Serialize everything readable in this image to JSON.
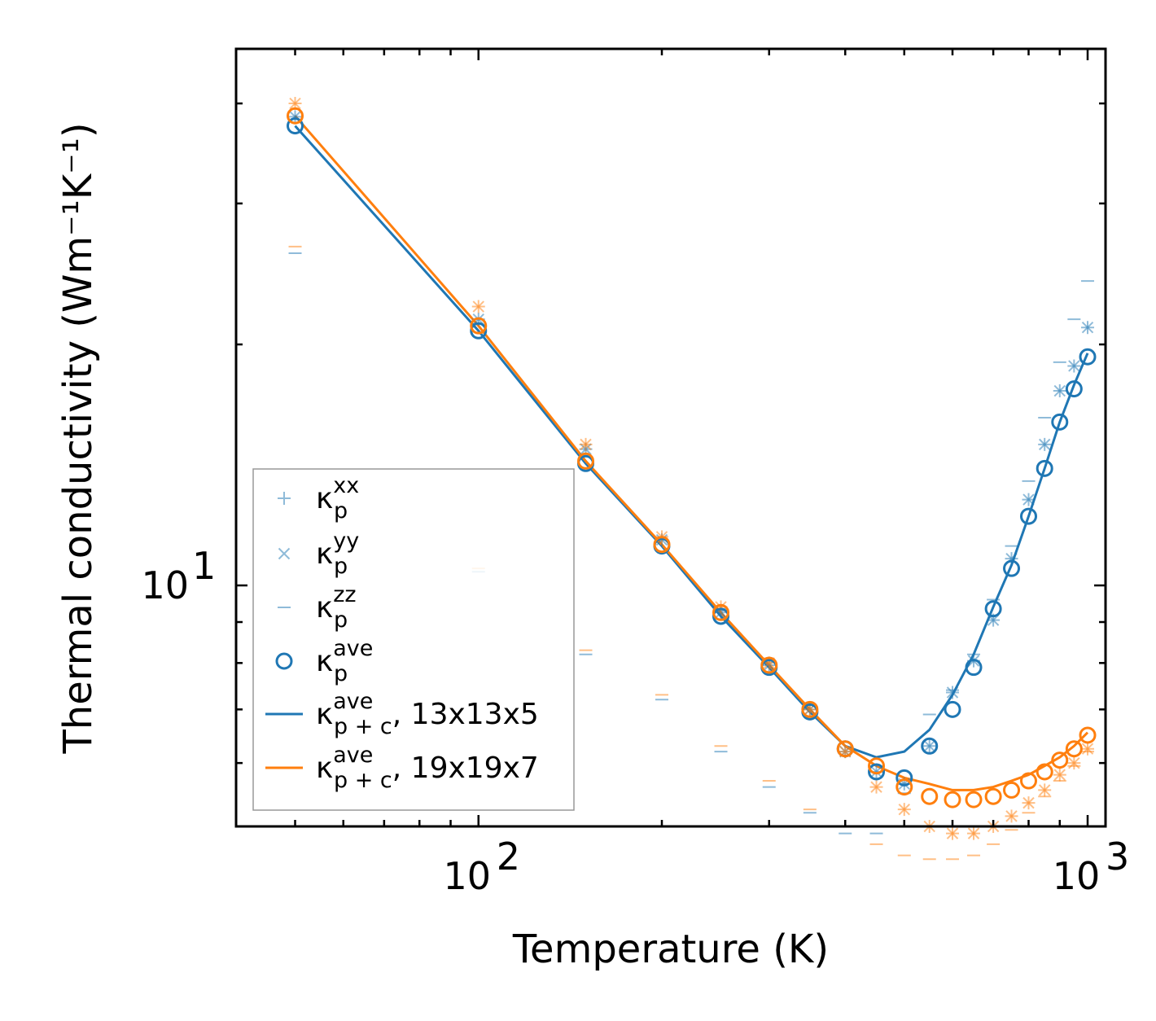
{
  "chart_data": {
    "type": "scatter",
    "xlabel": "Temperature (K)",
    "ylabel": "Thermal conductivity (Wm⁻¹K⁻¹)",
    "xscale": "log",
    "yscale": "log",
    "xlim": [
      40,
      1070
    ],
    "ylim": [
      5.0,
      46.8
    ],
    "x_major_ticks": [
      {
        "value": 100,
        "label": "10",
        "exp": "2"
      },
      {
        "value": 1000,
        "label": "10",
        "exp": "3"
      }
    ],
    "y_major_ticks": [
      {
        "value": 10,
        "label": "10",
        "exp": "1"
      }
    ],
    "legend_position": "lower-left",
    "temperatures": [
      50,
      100,
      150,
      200,
      250,
      300,
      350,
      400,
      450,
      500,
      550,
      600,
      650,
      700,
      750,
      800,
      850,
      900,
      950,
      1000
    ],
    "series": [
      {
        "name": "κ_p^xx 13x13x5",
        "color": "#1f77b4",
        "marker": "plus",
        "values": [
          38.5,
          21.5,
          14.8,
          11.4,
          9.25,
          7.95,
          7.0,
          6.2,
          5.85,
          5.65,
          6.3,
          7.35,
          8.05,
          9.05,
          10.8,
          12.8,
          15.0,
          17.5,
          18.8,
          21.0
        ]
      },
      {
        "name": "κ_p^yy 13x13x5",
        "color": "#1f77b4",
        "marker": "x",
        "values": [
          38.5,
          21.5,
          14.8,
          11.4,
          9.25,
          7.95,
          7.0,
          6.2,
          5.85,
          5.65,
          6.3,
          7.35,
          8.05,
          9.05,
          10.8,
          12.8,
          15.0,
          17.5,
          18.8,
          21.0
        ]
      },
      {
        "name": "κ_p^zz 13x13x5",
        "color": "#1f77b4",
        "marker": "hline",
        "values": [
          26.0,
          10.4,
          8.2,
          7.2,
          6.2,
          5.6,
          5.2,
          4.9,
          4.9,
          5.5,
          6.9,
          7.4,
          8.2,
          9.6,
          11.2,
          13.5,
          16.2,
          19.0,
          21.5,
          24.0
        ]
      },
      {
        "name": "κ_p^xx 19x19x7",
        "color": "#ff7f0e",
        "marker": "plus",
        "values": [
          40.0,
          22.3,
          15.0,
          11.5,
          9.4,
          8.0,
          7.0,
          6.2,
          5.6,
          5.25,
          5.0,
          4.9,
          4.9,
          5.0,
          5.15,
          5.35,
          5.55,
          5.8,
          6.0,
          6.25
        ]
      },
      {
        "name": "κ_p^yy 19x19x7",
        "color": "#ff7f0e",
        "marker": "x",
        "values": [
          40.0,
          22.3,
          15.0,
          11.5,
          9.4,
          8.0,
          7.0,
          6.2,
          5.6,
          5.25,
          5.0,
          4.9,
          4.9,
          5.0,
          5.15,
          5.35,
          5.55,
          5.8,
          6.0,
          6.25
        ]
      },
      {
        "name": "κ_p^zz 19x19x7",
        "color": "#ff7f0e",
        "marker": "hline",
        "values": [
          26.5,
          10.5,
          8.3,
          7.3,
          6.3,
          5.7,
          5.25,
          5.0,
          4.75,
          4.6,
          4.55,
          4.55,
          4.6,
          4.75,
          4.95,
          5.2,
          5.45,
          5.7,
          5.95,
          6.2
        ]
      },
      {
        "name": "κ_p^ave 13x13x5",
        "color": "#1f77b4",
        "marker": "circle",
        "values": [
          37.5,
          20.8,
          14.2,
          11.2,
          9.15,
          7.9,
          6.95,
          6.25,
          5.85,
          5.75,
          6.3,
          7.0,
          7.9,
          9.35,
          10.5,
          12.2,
          14.0,
          16.0,
          17.6,
          19.3
        ]
      },
      {
        "name": "κ_p^ave 19x19x7",
        "color": "#ff7f0e",
        "marker": "circle",
        "values": [
          38.6,
          21.1,
          14.3,
          11.25,
          9.25,
          7.95,
          7.0,
          6.25,
          5.95,
          5.6,
          5.45,
          5.4,
          5.4,
          5.45,
          5.55,
          5.7,
          5.85,
          6.05,
          6.25,
          6.5
        ]
      },
      {
        "name": "κ_p+c^ave, 13x13x5",
        "color": "#1f77b4",
        "marker": "line",
        "values": [
          37.5,
          20.8,
          14.2,
          11.2,
          9.15,
          7.9,
          6.95,
          6.3,
          6.1,
          6.2,
          6.6,
          7.3,
          8.2,
          9.4,
          10.6,
          12.2,
          14.0,
          16.0,
          17.8,
          19.5
        ]
      },
      {
        "name": "κ_p+c^ave, 19x19x7",
        "color": "#ff7f0e",
        "marker": "line",
        "values": [
          38.6,
          21.1,
          14.3,
          11.25,
          9.25,
          7.95,
          7.0,
          6.3,
          5.95,
          5.75,
          5.65,
          5.55,
          5.55,
          5.6,
          5.7,
          5.8,
          5.95,
          6.1,
          6.3,
          6.55
        ]
      }
    ],
    "legend": [
      {
        "symbol": "plus",
        "base": "κ",
        "sub": "p",
        "sup": "xx",
        "suffix": ""
      },
      {
        "symbol": "x",
        "base": "κ",
        "sub": "p",
        "sup": "yy",
        "suffix": ""
      },
      {
        "symbol": "hline",
        "base": "κ",
        "sub": "p",
        "sup": "zz",
        "suffix": ""
      },
      {
        "symbol": "circle",
        "base": "κ",
        "sub": "p",
        "sup": "ave",
        "suffix": ""
      },
      {
        "symbol": "line-blue",
        "base": "κ",
        "sub": "p + c",
        "sup": "ave",
        "suffix": ", 13x13x5"
      },
      {
        "symbol": "line-orange",
        "base": "κ",
        "sub": "p + c",
        "sup": "ave",
        "suffix": ", 19x19x7"
      }
    ]
  }
}
